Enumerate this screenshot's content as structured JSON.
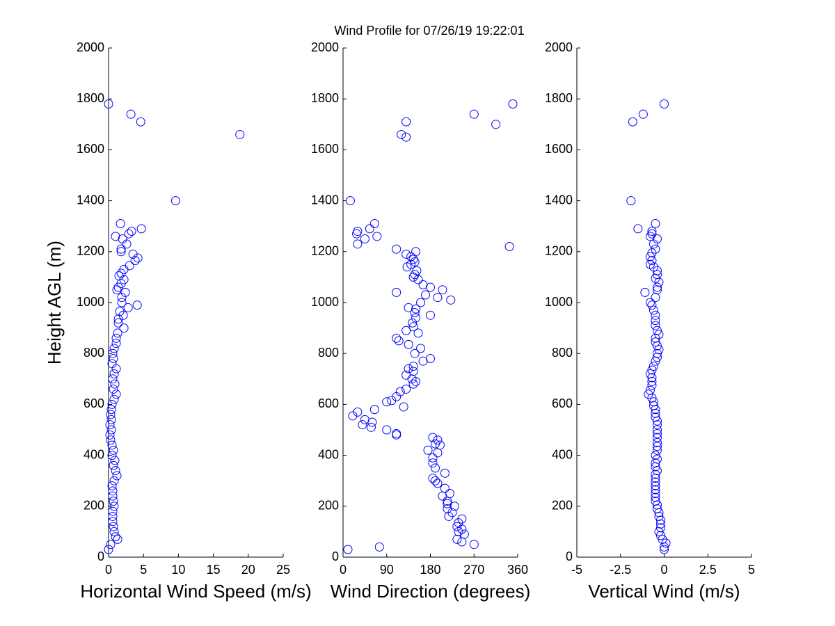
{
  "chart_data": [
    {
      "type": "scatter",
      "title": "Wind Profile for  07/26/19 19:22:01",
      "xlabel": "Horizontal Wind Speed (m/s)",
      "ylabel": "Height AGL (m)",
      "color": "#0000ff",
      "xlim": [
        0,
        25
      ],
      "xticks": [
        0,
        5,
        10,
        15,
        20,
        25
      ],
      "ylim": [
        0,
        2000
      ],
      "yticks": [
        0,
        200,
        400,
        600,
        800,
        1000,
        1200,
        1400,
        1600,
        1800,
        2000
      ],
      "x": [
        0,
        3.2,
        4.6,
        18.8,
        9.6,
        1.7,
        4.7,
        3.3,
        2.9,
        1.0,
        2.0,
        2.6,
        1.8,
        1.8,
        3.5,
        4.2,
        3.8,
        3.0,
        2.2,
        1.8,
        1.5,
        2.2,
        1.8,
        1.4,
        1.2,
        2.4,
        1.9,
        1.9,
        4.1,
        2.8,
        1.6,
        2.1,
        1.4,
        1.4,
        2.2,
        1.3,
        1.1,
        1.1,
        0.8,
        0.6,
        0.7,
        0.5,
        1.1,
        0.8,
        0.6,
        0.9,
        0.7,
        1.1,
        0.8,
        0.5,
        0.4,
        0.3,
        0.4,
        0.2,
        0.4,
        0.2,
        0.3,
        0.5,
        0.7,
        0.5,
        0.9,
        0.7,
        1.0,
        1.2,
        0.8,
        0.5,
        0.6,
        0.6,
        0.7,
        0.8,
        0.6,
        0.6,
        0.6,
        0.7,
        0.8,
        1.0,
        1.3,
        0.3,
        0
      ],
      "y": [
        1780,
        1740,
        1710,
        1660,
        1400,
        1310,
        1290,
        1280,
        1270,
        1260,
        1250,
        1230,
        1210,
        1200,
        1190,
        1175,
        1165,
        1145,
        1130,
        1115,
        1105,
        1090,
        1075,
        1060,
        1050,
        1040,
        1020,
        1000,
        990,
        980,
        965,
        950,
        935,
        920,
        900,
        880,
        860,
        840,
        820,
        800,
        780,
        760,
        740,
        720,
        700,
        680,
        660,
        640,
        620,
        600,
        580,
        560,
        540,
        520,
        500,
        480,
        460,
        440,
        420,
        400,
        380,
        360,
        340,
        320,
        300,
        280,
        260,
        240,
        220,
        200,
        180,
        160,
        140,
        120,
        100,
        80,
        70,
        50,
        30
      ]
    },
    {
      "type": "scatter",
      "xlabel": "Wind Direction (degrees)",
      "color": "#0000ff",
      "xlim": [
        0,
        360
      ],
      "xticks": [
        0,
        90,
        180,
        270,
        360
      ],
      "ylim": [
        0,
        2000
      ],
      "yticks": [
        0,
        200,
        400,
        600,
        800,
        1000,
        1200,
        1400,
        1600,
        1800,
        2000
      ],
      "x": [
        350,
        270,
        130,
        315,
        120,
        130,
        15,
        65,
        55,
        30,
        28,
        70,
        45,
        30,
        343,
        110,
        150,
        130,
        140,
        145,
        148,
        140,
        132,
        152,
        148,
        145,
        155,
        165,
        180,
        205,
        110,
        170,
        195,
        222,
        160,
        135,
        150,
        148,
        180,
        150,
        143,
        145,
        130,
        155,
        110,
        115,
        135,
        160,
        148,
        180,
        165,
        145,
        135,
        145,
        130,
        142,
        150,
        145,
        130,
        118,
        110,
        100,
        90,
        125,
        65,
        30,
        20,
        45,
        60,
        40,
        58,
        90,
        110,
        110,
        185,
        195,
        190,
        200,
        175,
        195,
        185,
        185,
        190,
        210,
        185,
        190,
        195,
        210,
        220,
        205,
        215,
        215,
        230,
        215,
        225,
        218,
        245,
        238,
        235,
        245,
        238,
        250,
        235,
        270,
        245,
        75,
        10
      ],
      "y": [
        1780,
        1740,
        1710,
        1700,
        1660,
        1650,
        1400,
        1310,
        1290,
        1280,
        1270,
        1260,
        1250,
        1230,
        1220,
        1210,
        1200,
        1190,
        1180,
        1170,
        1160,
        1150,
        1140,
        1125,
        1110,
        1100,
        1090,
        1070,
        1060,
        1050,
        1040,
        1030,
        1020,
        1010,
        1000,
        980,
        975,
        960,
        950,
        940,
        920,
        905,
        890,
        880,
        860,
        850,
        835,
        820,
        800,
        780,
        770,
        750,
        740,
        730,
        715,
        700,
        690,
        680,
        660,
        650,
        630,
        615,
        610,
        590,
        580,
        570,
        555,
        540,
        530,
        520,
        510,
        500,
        485,
        480,
        470,
        460,
        445,
        440,
        420,
        410,
        390,
        370,
        350,
        330,
        310,
        300,
        290,
        270,
        250,
        240,
        220,
        210,
        200,
        190,
        175,
        160,
        150,
        135,
        120,
        110,
        100,
        90,
        70,
        50,
        60,
        40,
        30
      ]
    },
    {
      "type": "scatter",
      "xlabel": "Vertical Wind (m/s)",
      "color": "#0000ff",
      "xlim": [
        -5,
        5
      ],
      "xticks": [
        -5,
        -2.5,
        0,
        2.5,
        5
      ],
      "ylim": [
        0,
        2000
      ],
      "yticks": [
        0,
        200,
        400,
        600,
        800,
        1000,
        1200,
        1400,
        1600,
        1800,
        2000
      ],
      "x": [
        0,
        -1.2,
        -1.8,
        -1.9,
        -0.5,
        -1.5,
        -0.7,
        -0.7,
        -0.8,
        -0.4,
        -0.6,
        -0.5,
        -0.7,
        -0.8,
        -0.7,
        -0.8,
        -0.6,
        -0.4,
        -0.4,
        -0.5,
        -0.3,
        -0.4,
        -0.4,
        -1.1,
        -0.5,
        -0.8,
        -0.7,
        -0.6,
        -0.5,
        -0.5,
        -0.5,
        -0.4,
        -0.3,
        -0.5,
        -0.5,
        -0.4,
        -0.3,
        -0.4,
        -0.4,
        -0.5,
        -0.6,
        -0.7,
        -0.8,
        -0.7,
        -0.7,
        -0.7,
        -0.8,
        -0.9,
        -0.7,
        -0.6,
        -0.6,
        -0.5,
        -0.5,
        -0.5,
        -0.4,
        -0.4,
        -0.4,
        -0.4,
        -0.4,
        -0.4,
        -0.4,
        -0.4,
        -0.5,
        -0.4,
        -0.5,
        -0.5,
        -0.4,
        -0.5,
        -0.5,
        -0.5,
        -0.5,
        -0.5,
        -0.5,
        -0.5,
        -0.5,
        -0.4,
        -0.4,
        -0.3,
        -0.3,
        -0.2,
        -0.2,
        -0.2,
        -0.3,
        -0.2,
        -0.1,
        0.1,
        0,
        0
      ],
      "y": [
        1780,
        1740,
        1710,
        1400,
        1310,
        1290,
        1280,
        1270,
        1260,
        1250,
        1230,
        1210,
        1195,
        1180,
        1165,
        1150,
        1140,
        1125,
        1110,
        1095,
        1080,
        1060,
        1050,
        1040,
        1020,
        1000,
        990,
        970,
        950,
        930,
        910,
        890,
        875,
        860,
        845,
        830,
        815,
        800,
        785,
        770,
        750,
        735,
        720,
        705,
        690,
        675,
        655,
        640,
        625,
        610,
        595,
        580,
        565,
        550,
        535,
        520,
        500,
        485,
        470,
        450,
        435,
        420,
        400,
        385,
        370,
        355,
        340,
        325,
        310,
        295,
        280,
        265,
        250,
        235,
        220,
        205,
        190,
        175,
        160,
        145,
        130,
        115,
        100,
        85,
        70,
        55,
        40,
        30
      ]
    }
  ]
}
